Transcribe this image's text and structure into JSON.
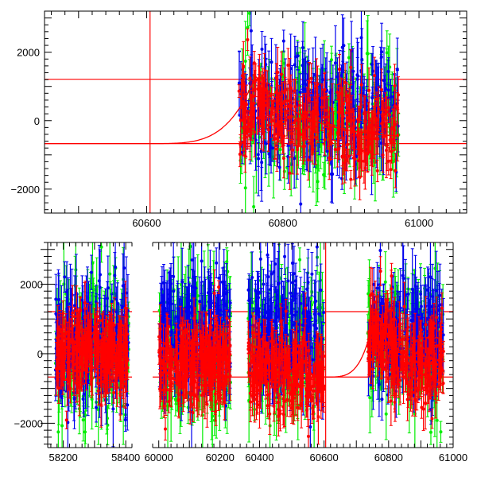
{
  "colors": {
    "red": "#ff0000",
    "green": "#00ee00",
    "blue": "#0000ee",
    "axis": "#000000"
  },
  "chart_data": [
    {
      "type": "scatter",
      "panel": "top",
      "xlim": [
        60450,
        61070
      ],
      "ylim": [
        -2700,
        3200
      ],
      "xticks": [
        60600,
        60800,
        61000
      ],
      "yticks": [
        -2000,
        0,
        2000
      ],
      "ytick_labels": [
        "−2000",
        "0",
        "2000"
      ],
      "hlines": [
        1210,
        -670
      ],
      "vlines": [
        60605
      ],
      "x_major_step": 100,
      "x_minor_step": 20,
      "y_major_step": 1000,
      "y_minor_step": 200,
      "error_bars": true,
      "series": [
        {
          "color": "green",
          "x_range": [
            60735,
            60970
          ],
          "n": 240,
          "center": 150,
          "spread": 1400,
          "err": 700,
          "seed": 11
        },
        {
          "color": "blue",
          "x_range": [
            60735,
            60970
          ],
          "n": 260,
          "center": 400,
          "spread": 1300,
          "err": 650,
          "seed": 23
        },
        {
          "color": "red",
          "x_range": [
            60735,
            60970
          ],
          "n": 320,
          "center": -250,
          "spread": 1100,
          "err": 450,
          "seed": 37
        }
      ],
      "model_curve": {
        "color": "red",
        "baseline": -670,
        "peak": 1300,
        "rise_start": 60600,
        "peak_x": 60760,
        "end_x": 60970
      }
    },
    {
      "type": "scatter",
      "panel": "bottom",
      "broken_x_axis": true,
      "ylim": [
        -2700,
        3200
      ],
      "yticks": [
        -2000,
        0,
        2000
      ],
      "ytick_labels": [
        "−2000",
        "0",
        "2000"
      ],
      "hlines": [
        1210,
        -670
      ],
      "error_bars": true,
      "segments": [
        {
          "xlim": [
            58150,
            58420
          ],
          "xticks": [
            58200,
            58400
          ],
          "x_major_step": 100,
          "x_minor_step": 20,
          "series": [
            {
              "color": "green",
              "x_range": [
                58175,
                58410
              ],
              "n": 200,
              "center": 100,
              "spread": 1500,
              "err": 700,
              "seed": 101
            },
            {
              "color": "blue",
              "x_range": [
                58175,
                58410
              ],
              "n": 200,
              "center": 300,
              "spread": 1400,
              "err": 650,
              "seed": 102
            },
            {
              "color": "red",
              "x_range": [
                58175,
                58410
              ],
              "n": 300,
              "center": 0,
              "spread": 900,
              "err": 450,
              "seed": 103
            }
          ]
        },
        {
          "xlim": [
            59980,
            60250
          ],
          "xticks": [
            60000,
            60200
          ],
          "x_major_step": 100,
          "x_minor_step": 20,
          "series": [
            {
              "color": "green",
              "x_range": [
                60000,
                60235
              ],
              "n": 200,
              "center": 200,
              "spread": 1500,
              "err": 700,
              "seed": 201
            },
            {
              "color": "blue",
              "x_range": [
                60000,
                60235
              ],
              "n": 200,
              "center": 600,
              "spread": 1400,
              "err": 650,
              "seed": 202
            },
            {
              "color": "red",
              "x_range": [
                60000,
                60235
              ],
              "n": 300,
              "center": -300,
              "spread": 900,
              "err": 450,
              "seed": 203
            }
          ]
        },
        {
          "xlim": [
            60325,
            61000
          ],
          "xticks": [
            60400,
            60600,
            60800,
            61000
          ],
          "x_major_step": 100,
          "x_minor_step": 20,
          "series": [
            {
              "color": "green",
              "x_range": [
                60365,
                60600
              ],
              "n": 180,
              "center": 200,
              "spread": 1500,
              "err": 700,
              "seed": 301
            },
            {
              "color": "blue",
              "x_range": [
                60365,
                60600
              ],
              "n": 180,
              "center": 800,
              "spread": 1500,
              "err": 650,
              "seed": 302
            },
            {
              "color": "red",
              "x_range": [
                60365,
                60600
              ],
              "n": 260,
              "center": -500,
              "spread": 900,
              "err": 450,
              "seed": 303
            },
            {
              "color": "green",
              "x_range": [
                60735,
                60970
              ],
              "n": 180,
              "center": 150,
              "spread": 1400,
              "err": 700,
              "seed": 304
            },
            {
              "color": "blue",
              "x_range": [
                60735,
                60970
              ],
              "n": 200,
              "center": 400,
              "spread": 1300,
              "err": 650,
              "seed": 305
            },
            {
              "color": "red",
              "x_range": [
                60735,
                60970
              ],
              "n": 260,
              "center": -250,
              "spread": 1100,
              "err": 450,
              "seed": 306
            }
          ],
          "vlines": [
            60605
          ],
          "model_curve": {
            "color": "red",
            "baseline": -670,
            "peak": 1300,
            "rise_start": 60600,
            "peak_x": 60760,
            "end_x": 60970
          }
        }
      ]
    }
  ]
}
